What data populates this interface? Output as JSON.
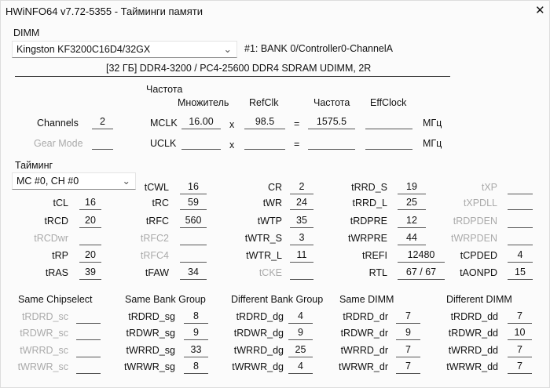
{
  "window": {
    "title": "HWiNFO64 v7.72-5355 - Тайминги памяти",
    "close_icon": "close-icon"
  },
  "dimm": {
    "label": "DIMM",
    "selected": "Kingston KF3200C16D4/32GX",
    "slot": "#1: BANK 0/Controller0-ChannelA",
    "info": "[32 ГБ] DDR4-3200 / PC4-25600 DDR4 SDRAM UDIMM, 2R"
  },
  "freq": {
    "group_label": "Частота",
    "headers": {
      "mult": "Множитель",
      "refclk": "RefClk",
      "freq": "Частота",
      "eff": "EffClock"
    },
    "channels_label": "Channels",
    "channels_value": "2",
    "gear_label": "Gear Mode",
    "gear_value": "",
    "mclk": {
      "label": "MCLK",
      "mult": "16.00",
      "refclk": "98.5",
      "freq": "1575.5",
      "eff": "",
      "unit": "МГц"
    },
    "uclk": {
      "label": "UCLK",
      "mult": "",
      "refclk": "",
      "freq": "",
      "eff": "",
      "unit": "МГц"
    },
    "times": "x",
    "equals": "="
  },
  "timing": {
    "label": "Тайминг",
    "selector": "MC #0, CH #0",
    "columns": [
      [
        null,
        {
          "label": "tCL",
          "value": "16",
          "enabled": true
        },
        {
          "label": "tRCD",
          "value": "20",
          "enabled": true
        },
        {
          "label": "tRCDwr",
          "value": "",
          "enabled": false
        },
        {
          "label": "tRP",
          "value": "20",
          "enabled": true
        },
        {
          "label": "tRAS",
          "value": "39",
          "enabled": true
        }
      ],
      [
        {
          "label": "tCWL",
          "value": "16",
          "enabled": true
        },
        {
          "label": "tRC",
          "value": "59",
          "enabled": true
        },
        {
          "label": "tRFC",
          "value": "560",
          "enabled": true
        },
        {
          "label": "tRFC2",
          "value": "",
          "enabled": false
        },
        {
          "label": "tRFC4",
          "value": "",
          "enabled": false
        },
        {
          "label": "tFAW",
          "value": "34",
          "enabled": true
        }
      ],
      [
        {
          "label": "CR",
          "value": "2",
          "enabled": true
        },
        {
          "label": "tWR",
          "value": "24",
          "enabled": true
        },
        {
          "label": "tWTP",
          "value": "35",
          "enabled": true
        },
        {
          "label": "tWTR_S",
          "value": "3",
          "enabled": true
        },
        {
          "label": "tWTR_L",
          "value": "11",
          "enabled": true
        },
        {
          "label": "tCKE",
          "value": "",
          "enabled": false
        }
      ],
      [
        {
          "label": "tRRD_S",
          "value": "19",
          "enabled": true
        },
        {
          "label": "tRRD_L",
          "value": "25",
          "enabled": true
        },
        {
          "label": "tRDPRE",
          "value": "12",
          "enabled": true
        },
        {
          "label": "tWRPRE",
          "value": "44",
          "enabled": true
        },
        {
          "label": "tREFI",
          "value": "12480",
          "enabled": true
        },
        {
          "label": "RTL",
          "value": "67 / 67",
          "enabled": true
        }
      ],
      [
        {
          "label": "tXP",
          "value": "",
          "enabled": false
        },
        {
          "label": "tXPDLL",
          "value": "",
          "enabled": false
        },
        {
          "label": "tRDPDEN",
          "value": "",
          "enabled": false
        },
        {
          "label": "tWRPDEN",
          "value": "",
          "enabled": false
        },
        {
          "label": "tCPDED",
          "value": "4",
          "enabled": true
        },
        {
          "label": "tAONPD",
          "value": "15",
          "enabled": true
        }
      ]
    ]
  },
  "turnaround": [
    {
      "header": "Same Chipselect",
      "rows": [
        {
          "label": "tRDRD_sc",
          "value": "",
          "enabled": false
        },
        {
          "label": "tRDWR_sc",
          "value": "",
          "enabled": false
        },
        {
          "label": "tWRRD_sc",
          "value": "",
          "enabled": false
        },
        {
          "label": "tWRWR_sc",
          "value": "",
          "enabled": false
        }
      ]
    },
    {
      "header": "Same Bank Group",
      "rows": [
        {
          "label": "tRDRD_sg",
          "value": "8",
          "enabled": true
        },
        {
          "label": "tRDWR_sg",
          "value": "9",
          "enabled": true
        },
        {
          "label": "tWRRD_sg",
          "value": "33",
          "enabled": true
        },
        {
          "label": "tWRWR_sg",
          "value": "8",
          "enabled": true
        }
      ]
    },
    {
      "header": "Different Bank Group",
      "rows": [
        {
          "label": "tRDRD_dg",
          "value": "4",
          "enabled": true
        },
        {
          "label": "tRDWR_dg",
          "value": "9",
          "enabled": true
        },
        {
          "label": "tWRRD_dg",
          "value": "25",
          "enabled": true
        },
        {
          "label": "tWRWR_dg",
          "value": "4",
          "enabled": true
        }
      ]
    },
    {
      "header": "Same DIMM",
      "rows": [
        {
          "label": "tRDRD_dr",
          "value": "7",
          "enabled": true
        },
        {
          "label": "tRDWR_dr",
          "value": "9",
          "enabled": true
        },
        {
          "label": "tWRRD_dr",
          "value": "7",
          "enabled": true
        },
        {
          "label": "tWRWR_dr",
          "value": "7",
          "enabled": true
        }
      ]
    },
    {
      "header": "Different DIMM",
      "rows": [
        {
          "label": "tRDRD_dd",
          "value": "7",
          "enabled": true
        },
        {
          "label": "tRDWR_dd",
          "value": "10",
          "enabled": true
        },
        {
          "label": "tWRRD_dd",
          "value": "7",
          "enabled": true
        },
        {
          "label": "tWRWR_dd",
          "value": "7",
          "enabled": true
        }
      ]
    }
  ]
}
